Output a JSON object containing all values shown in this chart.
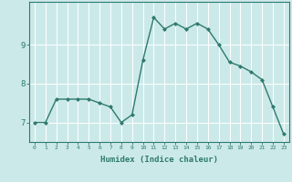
{
  "x": [
    0,
    1,
    2,
    3,
    4,
    5,
    6,
    7,
    8,
    9,
    10,
    11,
    12,
    13,
    14,
    15,
    16,
    17,
    18,
    19,
    20,
    21,
    22,
    23
  ],
  "y": [
    7.0,
    7.0,
    7.6,
    7.6,
    7.6,
    7.6,
    7.5,
    7.4,
    7.0,
    7.2,
    8.6,
    9.7,
    9.4,
    9.55,
    9.4,
    9.55,
    9.4,
    9.0,
    8.55,
    8.45,
    8.3,
    8.1,
    7.4,
    6.7
  ],
  "line_color": "#2d7a6e",
  "marker": "D",
  "markersize": 2.0,
  "xlabel": "Humidex (Indice chaleur)",
  "ylim": [
    6.5,
    10.1
  ],
  "xlim": [
    -0.5,
    23.5
  ],
  "yticks": [
    7,
    8,
    9
  ],
  "xticks": [
    0,
    1,
    2,
    3,
    4,
    5,
    6,
    7,
    8,
    9,
    10,
    11,
    12,
    13,
    14,
    15,
    16,
    17,
    18,
    19,
    20,
    21,
    22,
    23
  ],
  "bg_color": "#cce9e9",
  "grid_color": "#ffffff",
  "axis_color": "#2d7a6e",
  "tick_color": "#2d7a6e",
  "label_color": "#2d7a6e"
}
